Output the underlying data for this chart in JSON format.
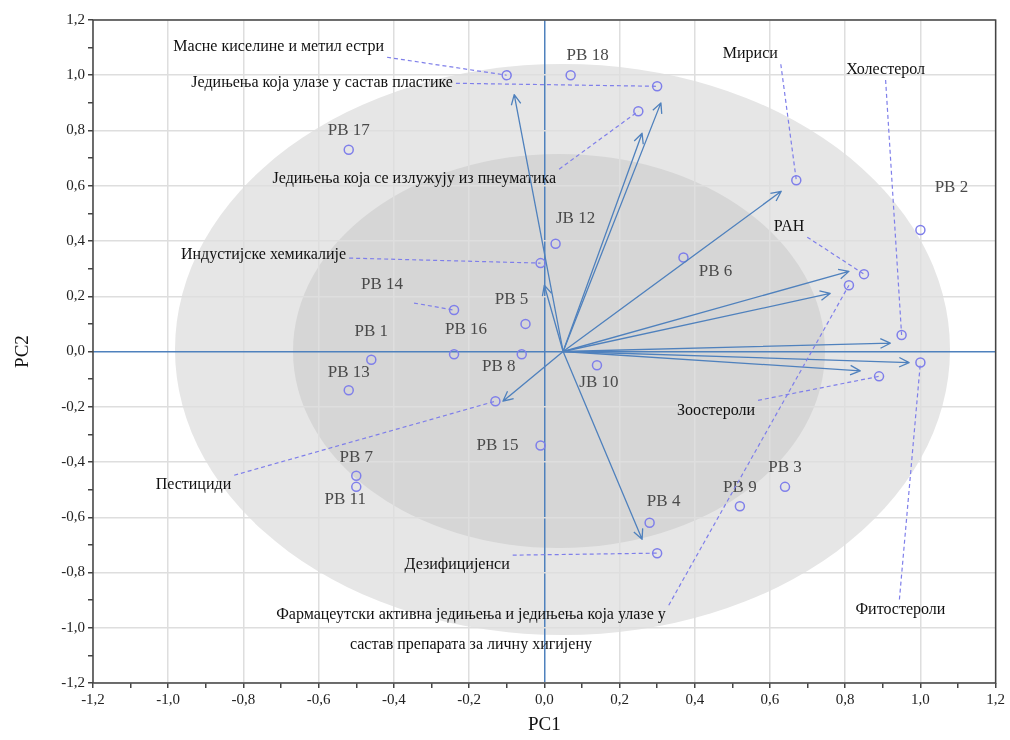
{
  "chart_data": {
    "type": "scatter",
    "xlabel": "PC1",
    "ylabel": "PC2",
    "xlim": [
      -1.2,
      1.2
    ],
    "ylim": [
      -1.2,
      1.2
    ],
    "xticks": [
      {
        "value": -1.2,
        "label": "-1,2"
      },
      {
        "value": -1.1,
        "label": null
      },
      {
        "value": -1.0,
        "label": "-1,0"
      },
      {
        "value": -0.9,
        "label": null
      },
      {
        "value": -0.8,
        "label": "-0,8"
      },
      {
        "value": -0.7,
        "label": null
      },
      {
        "value": -0.6,
        "label": "-0,6"
      },
      {
        "value": -0.5,
        "label": null
      },
      {
        "value": -0.4,
        "label": "-0,4"
      },
      {
        "value": -0.3,
        "label": null
      },
      {
        "value": -0.2,
        "label": "-0,2"
      },
      {
        "value": -0.1,
        "label": null
      },
      {
        "value": 0,
        "label": "0,0"
      },
      {
        "value": 0.1,
        "label": null
      },
      {
        "value": 0.2,
        "label": "0,2"
      },
      {
        "value": 0.3,
        "label": null
      },
      {
        "value": 0.4,
        "label": "0,4"
      },
      {
        "value": 0.5,
        "label": null
      },
      {
        "value": 0.6,
        "label": "0,6"
      },
      {
        "value": 0.7,
        "label": null
      },
      {
        "value": 0.8,
        "label": "0,8"
      },
      {
        "value": 0.9,
        "label": null
      },
      {
        "value": 1.0,
        "label": "1,0"
      },
      {
        "value": 1.1,
        "label": null
      },
      {
        "value": 1.2,
        "label": "1,2"
      }
    ],
    "yticks": [
      {
        "value": -1.2,
        "label": "-1,2"
      },
      {
        "value": -1.1,
        "label": null
      },
      {
        "value": -1.0,
        "label": "-1,0"
      },
      {
        "value": -0.9,
        "label": null
      },
      {
        "value": -0.8,
        "label": "-0,8"
      },
      {
        "value": -0.7,
        "label": null
      },
      {
        "value": -0.6,
        "label": "-0,6"
      },
      {
        "value": -0.5,
        "label": null
      },
      {
        "value": -0.4,
        "label": "-0,4"
      },
      {
        "value": -0.3,
        "label": null
      },
      {
        "value": -0.2,
        "label": "-0,2"
      },
      {
        "value": -0.1,
        "label": null
      },
      {
        "value": 0,
        "label": "0,0"
      },
      {
        "value": 0.1,
        "label": null
      },
      {
        "value": 0.2,
        "label": "0,2"
      },
      {
        "value": 0.3,
        "label": null
      },
      {
        "value": 0.4,
        "label": "0,4"
      },
      {
        "value": 0.5,
        "label": null
      },
      {
        "value": 0.6,
        "label": "0,6"
      },
      {
        "value": 0.7,
        "label": null
      },
      {
        "value": 0.8,
        "label": "0,8"
      },
      {
        "value": 0.9,
        "label": null
      },
      {
        "value": 1.0,
        "label": "1,0"
      },
      {
        "value": 1.1,
        "label": null
      },
      {
        "value": 1.2,
        "label": "1,2"
      }
    ],
    "grid": true,
    "marker": "circle",
    "annotations": [
      {
        "text": "Масне киселине и метил естри",
        "x": -0.1,
        "y": 1.0
      },
      {
        "text": "Једињења која улазе у састав пластике",
        "x": 0.3,
        "y": 0.96
      },
      {
        "text": "Једињења која се излужују из пнеуматика",
        "x": 0.25,
        "y": 0.87
      },
      {
        "text": "Индустијске хемикалије",
        "x": -0.01,
        "y": 0.32
      },
      {
        "text": "Мириси",
        "x": 0.67,
        "y": 0.62
      },
      {
        "text": "Холестерол",
        "x": 0.95,
        "y": 0.06
      },
      {
        "text": "PAH",
        "x": 0.85,
        "y": 0.28
      },
      {
        "text": "Фармацеутски активна једињења и једињења која улазе у\nсастав препарата за личну хигијену",
        "x": 0.81,
        "y": 0.24
      },
      {
        "text": "Зоостероли",
        "x": 0.89,
        "y": -0.09
      },
      {
        "text": "Фитостероли",
        "x": 1.0,
        "y": -0.04
      },
      {
        "text": "Пестициди",
        "x": -0.13,
        "y": -0.18
      },
      {
        "text": "Дезифицијенси",
        "x": 0.3,
        "y": -0.73
      }
    ],
    "series": [
      {
        "color": "#7f7fea",
        "x": [
          0.07,
          -0.52,
          1.0,
          0.03,
          0.37,
          -0.24,
          -0.05,
          -0.46,
          -0.24,
          -0.06,
          0.14,
          -0.52,
          -0.01,
          -0.5,
          -0.5,
          0.64,
          0.52,
          0.28
        ],
        "values": [
          1.0,
          0.73,
          0.44,
          0.39,
          0.34,
          0.15,
          0.1,
          -0.03,
          -0.01,
          -0.01,
          -0.05,
          -0.14,
          -0.34,
          -0.45,
          -0.49,
          -0.49,
          -0.56,
          -0.62
        ],
        "value_labels": [
          "РВ 18",
          "РВ 17",
          "РВ 2",
          "ЈВ 12",
          "РВ 6",
          "РВ 14",
          "РВ 5",
          "РВ 1",
          "РВ 16",
          "РВ 8",
          "ЈВ 10",
          "РВ 13",
          "РВ 15",
          "РВ 7",
          "РВ 11",
          "РВ 3",
          "РВ 9",
          "РВ 4"
        ]
      },
      {
        "color": "#7f7fea",
        "x": [
          -0.1,
          0.3,
          0.25,
          -0.01,
          0.67,
          0.95,
          0.85,
          0.81,
          0.89,
          1.0,
          -0.13,
          0.3
        ],
        "values": [
          1.0,
          0.96,
          0.87,
          0.32,
          0.62,
          0.06,
          0.28,
          0.24,
          -0.09,
          -0.04,
          -0.18,
          -0.73
        ]
      }
    ]
  }
}
